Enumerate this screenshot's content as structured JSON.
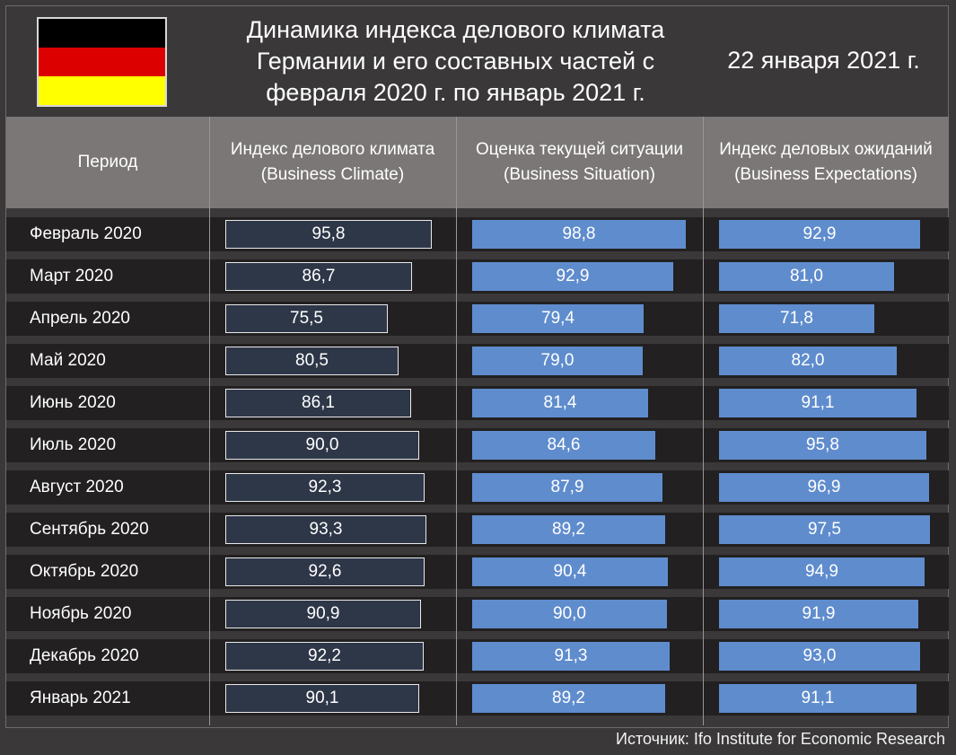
{
  "header": {
    "title": "Динамика индекса делового климата\nГермании и его составных частей с\nфевраля 2020 г. по январь 2021 г.",
    "date": "22 января 2021 г.",
    "flag_colors": [
      "#000000",
      "#dd0000",
      "#ffff00"
    ]
  },
  "columns": {
    "period": "Период",
    "climate": "Индекс делового климата\n(Business Climate)",
    "situation": "Оценка текущей ситуации\n(Business Situation)",
    "expectations": "Индекс деловых ожиданий\n(Business Expectations)"
  },
  "colors": {
    "climate_bar": "#2e3748",
    "situation_bar": "#5f8ccd",
    "expectations_bar": "#5f8ccd",
    "row_bg": "#222020",
    "header_bg": "#7c7777"
  },
  "chart_data": {
    "type": "bar",
    "categories": [
      "Февраль 2020",
      "Март 2020",
      "Апрель 2020",
      "Май 2020",
      "Июнь 2020",
      "Июль 2020",
      "Август 2020",
      "Сентябрь 2020",
      "Октябрь 2020",
      "Ноябрь 2020",
      "Декабрь 2020",
      "Январь 2021"
    ],
    "series": [
      {
        "name": "Индекс делового климата (Business Climate)",
        "values": [
          95.8,
          86.7,
          75.5,
          80.5,
          86.1,
          90.0,
          92.3,
          93.3,
          92.6,
          90.9,
          92.2,
          90.1
        ],
        "labels": [
          "95,8",
          "86,7",
          "75,5",
          "80,5",
          "86,1",
          "90,0",
          "92,3",
          "93,3",
          "92,6",
          "90,9",
          "92,2",
          "90,1"
        ]
      },
      {
        "name": "Оценка текущей ситуации (Business Situation)",
        "values": [
          98.8,
          92.9,
          79.4,
          79.0,
          81.4,
          84.6,
          87.9,
          89.2,
          90.4,
          90.0,
          91.3,
          89.2
        ],
        "labels": [
          "98,8",
          "92,9",
          "79,4",
          "79,0",
          "81,4",
          "84,6",
          "87,9",
          "89,2",
          "90,4",
          "90,0",
          "91,3",
          "89,2"
        ]
      },
      {
        "name": "Индекс деловых ожиданий (Business Expectations)",
        "values": [
          92.9,
          81.0,
          71.8,
          82.0,
          91.1,
          95.8,
          96.9,
          97.5,
          94.9,
          91.9,
          93.0,
          91.1
        ],
        "labels": [
          "92,9",
          "81,0",
          "71,8",
          "82,0",
          "91,1",
          "95,8",
          "96,9",
          "97,5",
          "94,9",
          "91,9",
          "93,0",
          "91,1"
        ]
      }
    ]
  },
  "footer": {
    "source": "Источник: Ifo Institute for Economic Research"
  }
}
